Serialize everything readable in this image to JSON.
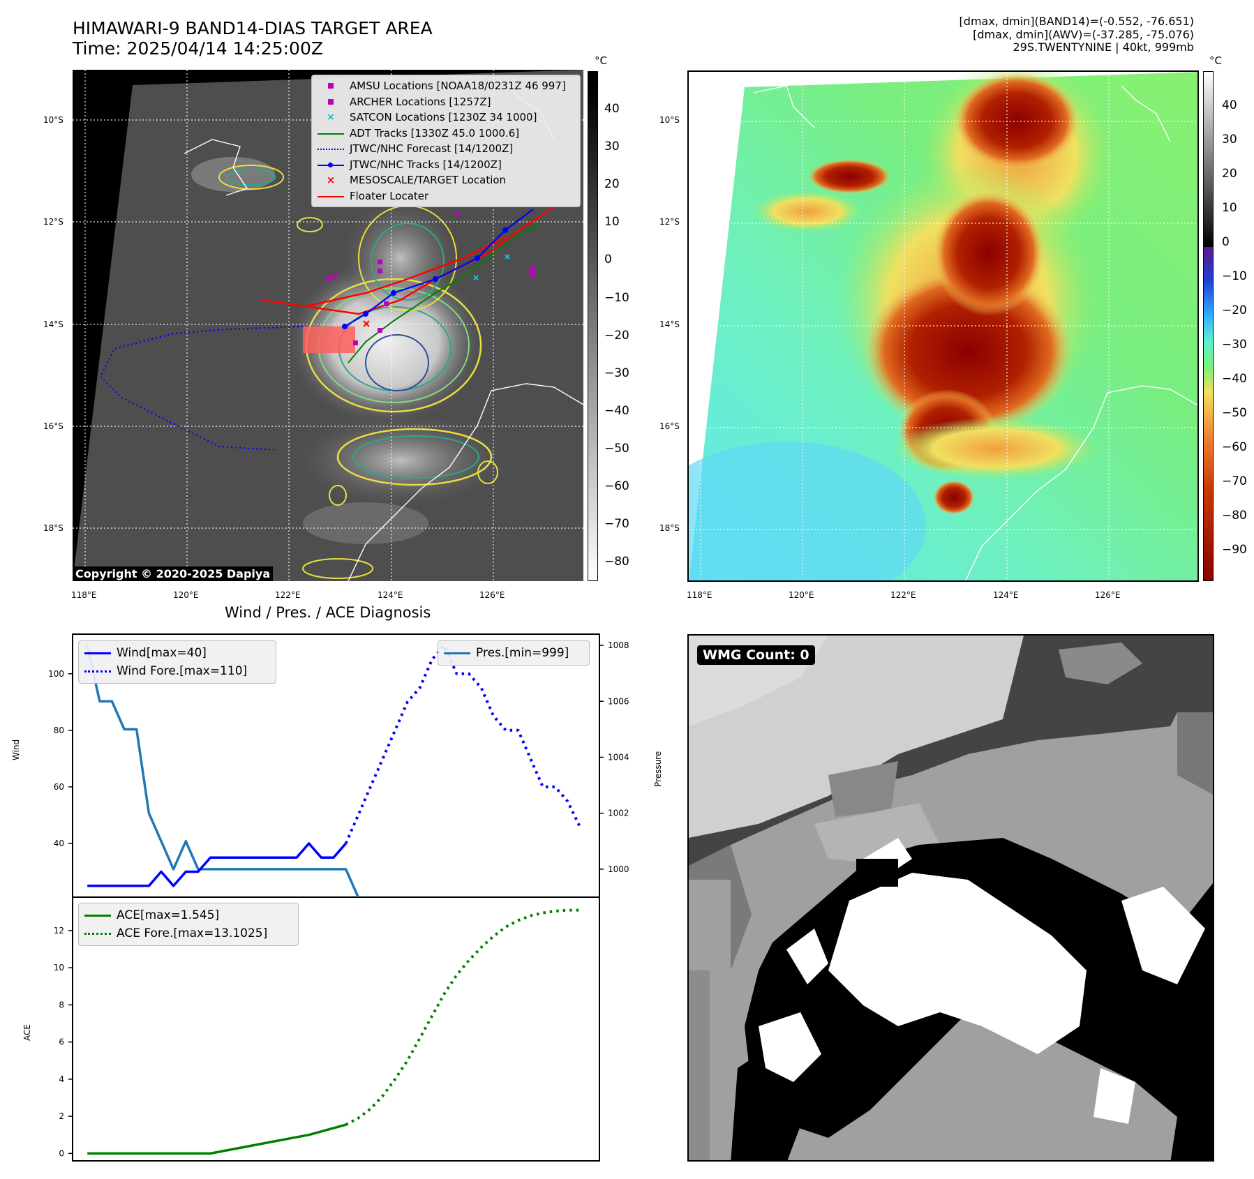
{
  "header": {
    "title_line1": "HIMAWARI-9 BAND14-DIAS TARGET AREA",
    "title_line2": "Time: 2025/04/14 14:25:00Z",
    "right_line1": "[dmax, dmin](BAND14)=(-0.552, -76.651)",
    "right_line2": "[dmax, dmin](AWV)=(-37.285, -75.076)",
    "right_line3": "29S.TWENTYNINE | 40kt, 999mb"
  },
  "map": {
    "lon_labels": [
      "118°E",
      "120°E",
      "122°E",
      "124°E",
      "126°E"
    ],
    "lat_labels": [
      "10°S",
      "12°S",
      "14°S",
      "16°S",
      "18°S"
    ],
    "copyright": "Copyright © 2020-2025 Dapiya"
  },
  "colorbar_left": {
    "unit": "°C",
    "ticks": [
      "40",
      "30",
      "20",
      "10",
      "0",
      "−10",
      "−20",
      "−30",
      "−40",
      "−50",
      "−60",
      "−70",
      "−80"
    ],
    "colors": [
      "#000000",
      "#ffffff"
    ]
  },
  "colorbar_right": {
    "unit": "°C",
    "ticks": [
      "40",
      "30",
      "20",
      "10",
      "0",
      "−10",
      "−20",
      "−30",
      "−40",
      "−50",
      "−60",
      "−70",
      "−80",
      "−90"
    ],
    "colors_pos": [
      "#ffffff",
      "#000000"
    ],
    "colors_neg": [
      "#5a1a8a",
      "#1f3fd6",
      "#30b0ff",
      "#5ff0d0",
      "#78f27a",
      "#f0e060",
      "#f08030",
      "#c83a00",
      "#8a0000"
    ]
  },
  "legend_map": {
    "items": [
      {
        "label": "AMSU Locations [NOAA18/0231Z 46 997]",
        "icon": "magenta-square",
        "color": "#c000c0"
      },
      {
        "label": "ARCHER Locations [1257Z]",
        "icon": "magenta-square",
        "color": "#c000c0"
      },
      {
        "label": "SATCON Locations [1230Z 34 1000]",
        "icon": "cyan-x",
        "color": "#17becf"
      },
      {
        "label": "ADT Tracks [1330Z 45.0 1000.6]",
        "icon": "green-line",
        "color": "#008000"
      },
      {
        "label": "JTWC/NHC Forecast [14/1200Z]",
        "icon": "blue-dotted-line",
        "color": "#0000ff"
      },
      {
        "label": "JTWC/NHC Tracks [14/1200Z]",
        "icon": "blue-line-dot",
        "color": "#0000ff"
      },
      {
        "label": "MESOSCALE/TARGET Location",
        "icon": "red-x",
        "color": "#ff0000"
      },
      {
        "label": "Floater Locater",
        "icon": "red-line",
        "color": "#ff0000"
      }
    ]
  },
  "diagnosis": {
    "title": "Wind / Pres. / ACE Diagnosis",
    "wind_ylabel": "Wind",
    "pres_ylabel": "Pressure",
    "ace_ylabel": "ACE",
    "legend_wind": "Wind[max=40]",
    "legend_wind_fore": "Wind Fore.[max=110]",
    "legend_pres": "Pres.[min=999]",
    "legend_ace": "ACE[max=1.545]",
    "legend_ace_fore": "ACE Fore.[max=13.1025]"
  },
  "wmg": {
    "label": "WMG Count: 0"
  },
  "chart_data": [
    {
      "type": "line",
      "name": "wind-pressure",
      "x": [
        0,
        1,
        2,
        3,
        4,
        5,
        6,
        7,
        8,
        9,
        10,
        11,
        12,
        13,
        14,
        15,
        16,
        17,
        18,
        19,
        20,
        21,
        22,
        23,
        24,
        25,
        26,
        27,
        28,
        29,
        30,
        31,
        32,
        33,
        34,
        35,
        36,
        37,
        38,
        39,
        40
      ],
      "wind_ylim": [
        21,
        114
      ],
      "wind_yticks": [
        40,
        60,
        80,
        100
      ],
      "pres_ylim": [
        999.0,
        1008.4
      ],
      "pres_yticks": [
        1000,
        1002,
        1004,
        1006,
        1008
      ],
      "xlim": [
        -1.2,
        41.6
      ],
      "series": [
        {
          "name": "Wind[max=40]",
          "color": "#0000ff",
          "style": "solid",
          "x": [
            0,
            1,
            2,
            3,
            4,
            5,
            6,
            7,
            8,
            9,
            10,
            11,
            12,
            13,
            14,
            15,
            16,
            17,
            18,
            19,
            20,
            21
          ],
          "values": [
            25,
            25,
            25,
            25,
            25,
            25,
            30,
            25,
            30,
            30,
            35,
            35,
            35,
            35,
            35,
            35,
            35,
            35,
            40,
            35,
            35,
            40
          ]
        },
        {
          "name": "Wind Fore.[max=110]",
          "color": "#0000ff",
          "style": "dotted",
          "x": [
            21,
            22,
            23,
            24,
            25,
            26,
            27,
            28,
            29,
            30,
            31,
            32,
            33,
            34,
            35,
            36,
            37,
            38,
            39,
            40
          ],
          "values": [
            40,
            50,
            60,
            70,
            80,
            90,
            95,
            105,
            110,
            100,
            100,
            95,
            85,
            80,
            80,
            70,
            60,
            60,
            55,
            46
          ]
        },
        {
          "name": "Pres.[min=999]",
          "color": "#1f77b4",
          "style": "solid",
          "axis": "right",
          "x": [
            0,
            1,
            2,
            3,
            4,
            5,
            6,
            7,
            8,
            9,
            10,
            11,
            12,
            13,
            14,
            15,
            16,
            17,
            18,
            19,
            20,
            21,
            22
          ],
          "values": [
            1008,
            1006,
            1006,
            1005,
            1005,
            1002,
            1001,
            1000,
            1001,
            1000,
            1000,
            1000,
            1000,
            1000,
            1000,
            1000,
            1000,
            1000,
            1000,
            1000,
            1000,
            1000,
            999
          ]
        }
      ]
    },
    {
      "type": "line",
      "name": "ace",
      "xlim": [
        -1.2,
        41.6
      ],
      "ylim": [
        -0.4,
        13.8
      ],
      "yticks": [
        0,
        2,
        4,
        6,
        8,
        10,
        12
      ],
      "series": [
        {
          "name": "ACE[max=1.545]",
          "color": "#008000",
          "style": "solid",
          "x": [
            0,
            5,
            10,
            14,
            18,
            21
          ],
          "values": [
            0,
            0,
            0,
            0.5,
            1.0,
            1.545
          ]
        },
        {
          "name": "ACE Fore.[max=13.1025]",
          "color": "#008000",
          "style": "dotted",
          "x": [
            21,
            22,
            23,
            24,
            25,
            26,
            27,
            28,
            29,
            30,
            31,
            32,
            33,
            34,
            35,
            36,
            37,
            38,
            39,
            40
          ],
          "values": [
            1.545,
            1.9,
            2.4,
            3.1,
            4.0,
            5.0,
            6.2,
            7.4,
            8.6,
            9.6,
            10.4,
            11.1,
            11.7,
            12.2,
            12.55,
            12.8,
            12.95,
            13.05,
            13.1,
            13.1025
          ]
        }
      ]
    }
  ]
}
